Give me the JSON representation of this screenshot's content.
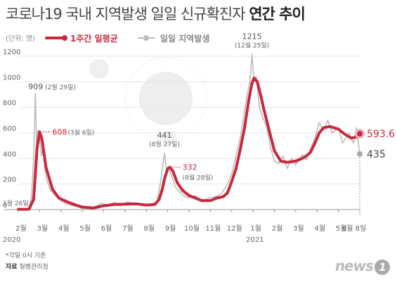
{
  "title": {
    "part1": "코로나19 국내 지역발생 일일 신규확진자",
    "part2": "연간 추이"
  },
  "legend": {
    "unit": "(단위: 명)",
    "avg_label": "1주간 일평균",
    "daily_label": "일일 지역발생"
  },
  "colors": {
    "avg": "#c8283d",
    "daily": "#bcbcbc",
    "grid": "#e6e6e6"
  },
  "chart_data": {
    "type": "line",
    "ylim": [
      0,
      1200
    ],
    "yticks": [
      0,
      200,
      400,
      600,
      800,
      1000,
      1200
    ],
    "months": [
      "2월",
      "3월",
      "4월",
      "5월",
      "6월",
      "7월",
      "8월",
      "9월",
      "10월",
      "11월",
      "12월",
      "1월",
      "2월",
      "3월",
      "4월",
      "5월",
      "6월 8일"
    ],
    "years": [
      "2020",
      "2021"
    ],
    "series": [
      {
        "name": "1주간 일평균",
        "points": [
          [
            0,
            2
          ],
          [
            0.5,
            3
          ],
          [
            0.72,
            80
          ],
          [
            0.88,
            480
          ],
          [
            1.0,
            608
          ],
          [
            1.1,
            560
          ],
          [
            1.3,
            330
          ],
          [
            1.6,
            160
          ],
          [
            1.9,
            90
          ],
          [
            2.3,
            60
          ],
          [
            2.7,
            35
          ],
          [
            3.0,
            20
          ],
          [
            3.5,
            12
          ],
          [
            4.0,
            30
          ],
          [
            4.5,
            40
          ],
          [
            5.0,
            42
          ],
          [
            5.5,
            45
          ],
          [
            6.0,
            35
          ],
          [
            6.4,
            40
          ],
          [
            6.6,
            80
          ],
          [
            6.75,
            160
          ],
          [
            6.85,
            240
          ],
          [
            7.0,
            320
          ],
          [
            7.1,
            332
          ],
          [
            7.25,
            300
          ],
          [
            7.45,
            210
          ],
          [
            7.7,
            150
          ],
          [
            8.0,
            110
          ],
          [
            8.3,
            90
          ],
          [
            8.6,
            70
          ],
          [
            9.0,
            70
          ],
          [
            9.3,
            90
          ],
          [
            9.6,
            100
          ],
          [
            9.8,
            130
          ],
          [
            10.0,
            220
          ],
          [
            10.2,
            320
          ],
          [
            10.4,
            470
          ],
          [
            10.6,
            640
          ],
          [
            10.8,
            860
          ],
          [
            10.95,
            990
          ],
          [
            11.05,
            1030
          ],
          [
            11.2,
            1000
          ],
          [
            11.35,
            900
          ],
          [
            11.5,
            790
          ],
          [
            11.65,
            690
          ],
          [
            11.8,
            590
          ],
          [
            12.0,
            460
          ],
          [
            12.3,
            380
          ],
          [
            12.6,
            370
          ],
          [
            13.0,
            380
          ],
          [
            13.3,
            400
          ],
          [
            13.5,
            420
          ],
          [
            13.7,
            450
          ],
          [
            13.9,
            520
          ],
          [
            14.1,
            600
          ],
          [
            14.3,
            640
          ],
          [
            14.6,
            650
          ],
          [
            15.0,
            630
          ],
          [
            15.3,
            590
          ],
          [
            15.6,
            560
          ],
          [
            15.9,
            570
          ],
          [
            16.0,
            593.6
          ]
        ]
      },
      {
        "name": "일일 지역발생",
        "points": [
          [
            0,
            1
          ],
          [
            0.5,
            2
          ],
          [
            0.62,
            100
          ],
          [
            0.72,
            400
          ],
          [
            0.8,
            909
          ],
          [
            0.86,
            500
          ],
          [
            0.92,
            620
          ],
          [
            1.0,
            560
          ],
          [
            1.08,
            420
          ],
          [
            1.15,
            480
          ],
          [
            1.3,
            250
          ],
          [
            1.5,
            150
          ],
          [
            1.8,
            100
          ],
          [
            2.0,
            70
          ],
          [
            2.3,
            40
          ],
          [
            2.7,
            25
          ],
          [
            3.0,
            10
          ],
          [
            3.5,
            10
          ],
          [
            3.9,
            50
          ],
          [
            4.2,
            30
          ],
          [
            4.5,
            55
          ],
          [
            4.8,
            30
          ],
          [
            5.1,
            60
          ],
          [
            5.5,
            45
          ],
          [
            5.9,
            30
          ],
          [
            6.2,
            40
          ],
          [
            6.5,
            60
          ],
          [
            6.65,
            200
          ],
          [
            6.85,
            441
          ],
          [
            6.95,
            300
          ],
          [
            7.05,
            320
          ],
          [
            7.2,
            260
          ],
          [
            7.35,
            180
          ],
          [
            7.55,
            140
          ],
          [
            7.75,
            110
          ],
          [
            8.0,
            90
          ],
          [
            8.3,
            110
          ],
          [
            8.6,
            60
          ],
          [
            8.9,
            90
          ],
          [
            9.2,
            100
          ],
          [
            9.5,
            120
          ],
          [
            9.8,
            200
          ],
          [
            10.0,
            280
          ],
          [
            10.2,
            420
          ],
          [
            10.4,
            560
          ],
          [
            10.55,
            720
          ],
          [
            10.7,
            880
          ],
          [
            10.85,
            1000
          ],
          [
            10.95,
            1215
          ],
          [
            11.05,
            1000
          ],
          [
            11.15,
            1040
          ],
          [
            11.3,
            800
          ],
          [
            11.5,
            700
          ],
          [
            11.65,
            640
          ],
          [
            11.8,
            500
          ],
          [
            12.0,
            380
          ],
          [
            12.2,
            360
          ],
          [
            12.4,
            420
          ],
          [
            12.6,
            320
          ],
          [
            12.8,
            400
          ],
          [
            13.0,
            350
          ],
          [
            13.3,
            430
          ],
          [
            13.5,
            390
          ],
          [
            13.7,
            480
          ],
          [
            13.9,
            560
          ],
          [
            14.1,
            680
          ],
          [
            14.3,
            620
          ],
          [
            14.5,
            700
          ],
          [
            14.7,
            600
          ],
          [
            15.0,
            640
          ],
          [
            15.2,
            520
          ],
          [
            15.5,
            600
          ],
          [
            15.7,
            520
          ],
          [
            15.85,
            640
          ],
          [
            16.0,
            435
          ]
        ]
      }
    ],
    "annotations": [
      {
        "text": "909",
        "sub": "(2월 29일)",
        "x": 0.8,
        "y": 909,
        "style": "plain"
      },
      {
        "text": "608",
        "sub": "(3월 6일)",
        "x": 1.0,
        "y": 608,
        "style": "red"
      },
      {
        "text": "441",
        "sub": "(8월 27일)",
        "x": 6.85,
        "y": 441,
        "style": "plain"
      },
      {
        "text": "332",
        "sub": "(8월 28일)",
        "x": 7.1,
        "y": 332,
        "style": "red"
      },
      {
        "text": "1215",
        "sub": "(12월 25일)",
        "x": 10.95,
        "y": 1215,
        "style": "plain"
      },
      {
        "text": "1월 26일",
        "sub": "",
        "x": 0.0,
        "y": 0,
        "style": "small"
      }
    ],
    "end_labels": {
      "avg": "593.6",
      "daily": "435"
    }
  },
  "footnote": {
    "line1": "*각일 0시 기준",
    "source_label": "자료",
    "source": "질병관리청"
  },
  "logo": {
    "text": "news",
    "badge": "1"
  }
}
